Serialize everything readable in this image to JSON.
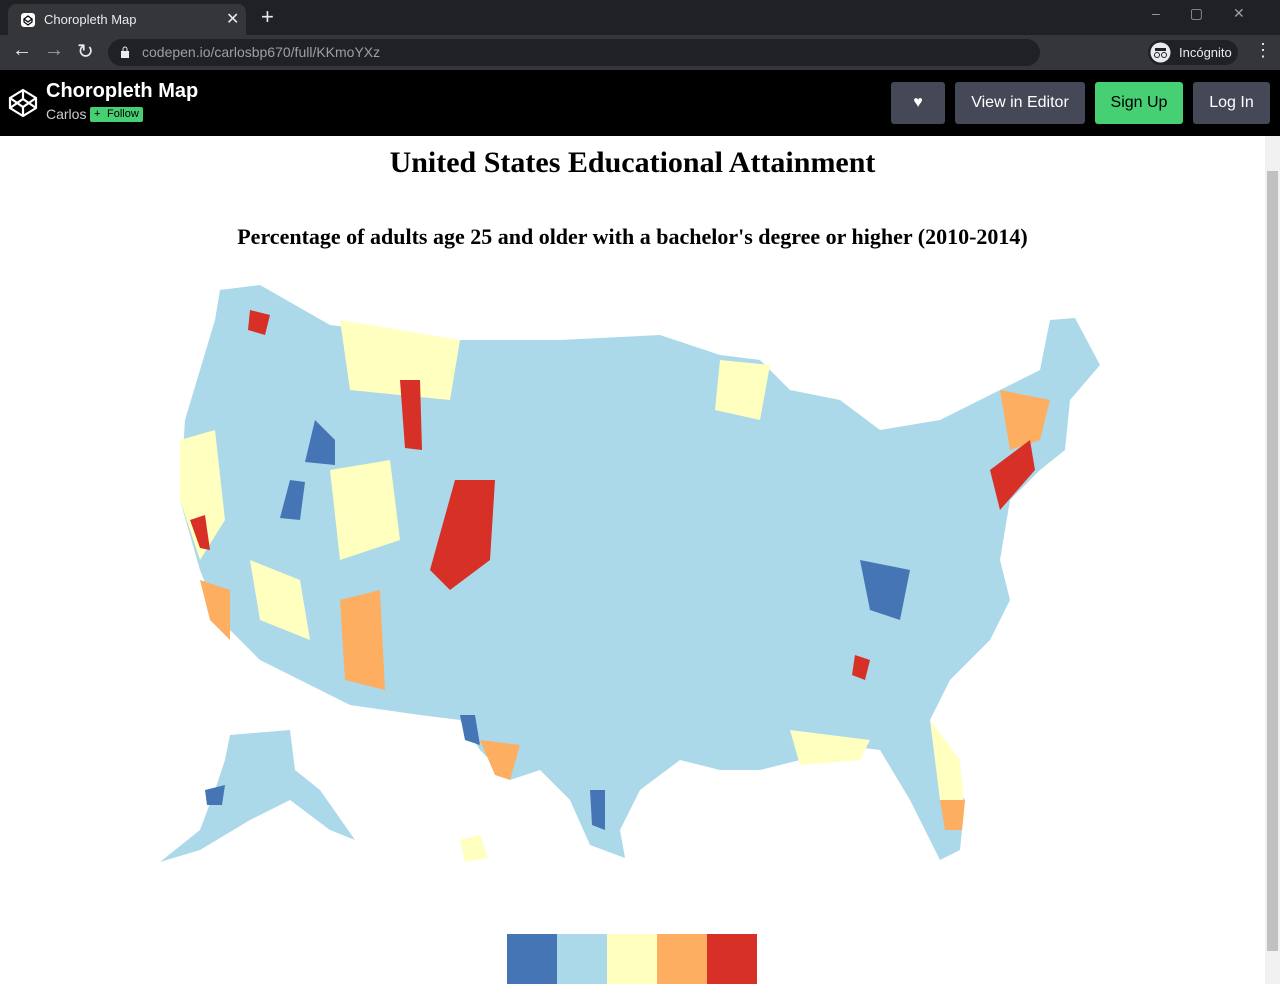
{
  "browser": {
    "tab_title": "Choropleth Map",
    "url": "codepen.io/carlosbp670/full/KKmoYXz",
    "profile": "Incógnito"
  },
  "header": {
    "title": "Choropleth Map",
    "author": "Carlos",
    "follow": "Follow",
    "buttons": [
      "View in Editor",
      "Sign Up",
      "Log In"
    ]
  },
  "content": {
    "title": "United States Educational Attainment",
    "subtitle": "Percentage of adults age 25 and older with a bachelor's degree or higher (2010-2014)",
    "legend": {
      "colors": [
        "#4575b4",
        "#abd9e9",
        "#ffffbf",
        "#fdae61",
        "#d73027"
      ]
    }
  }
}
